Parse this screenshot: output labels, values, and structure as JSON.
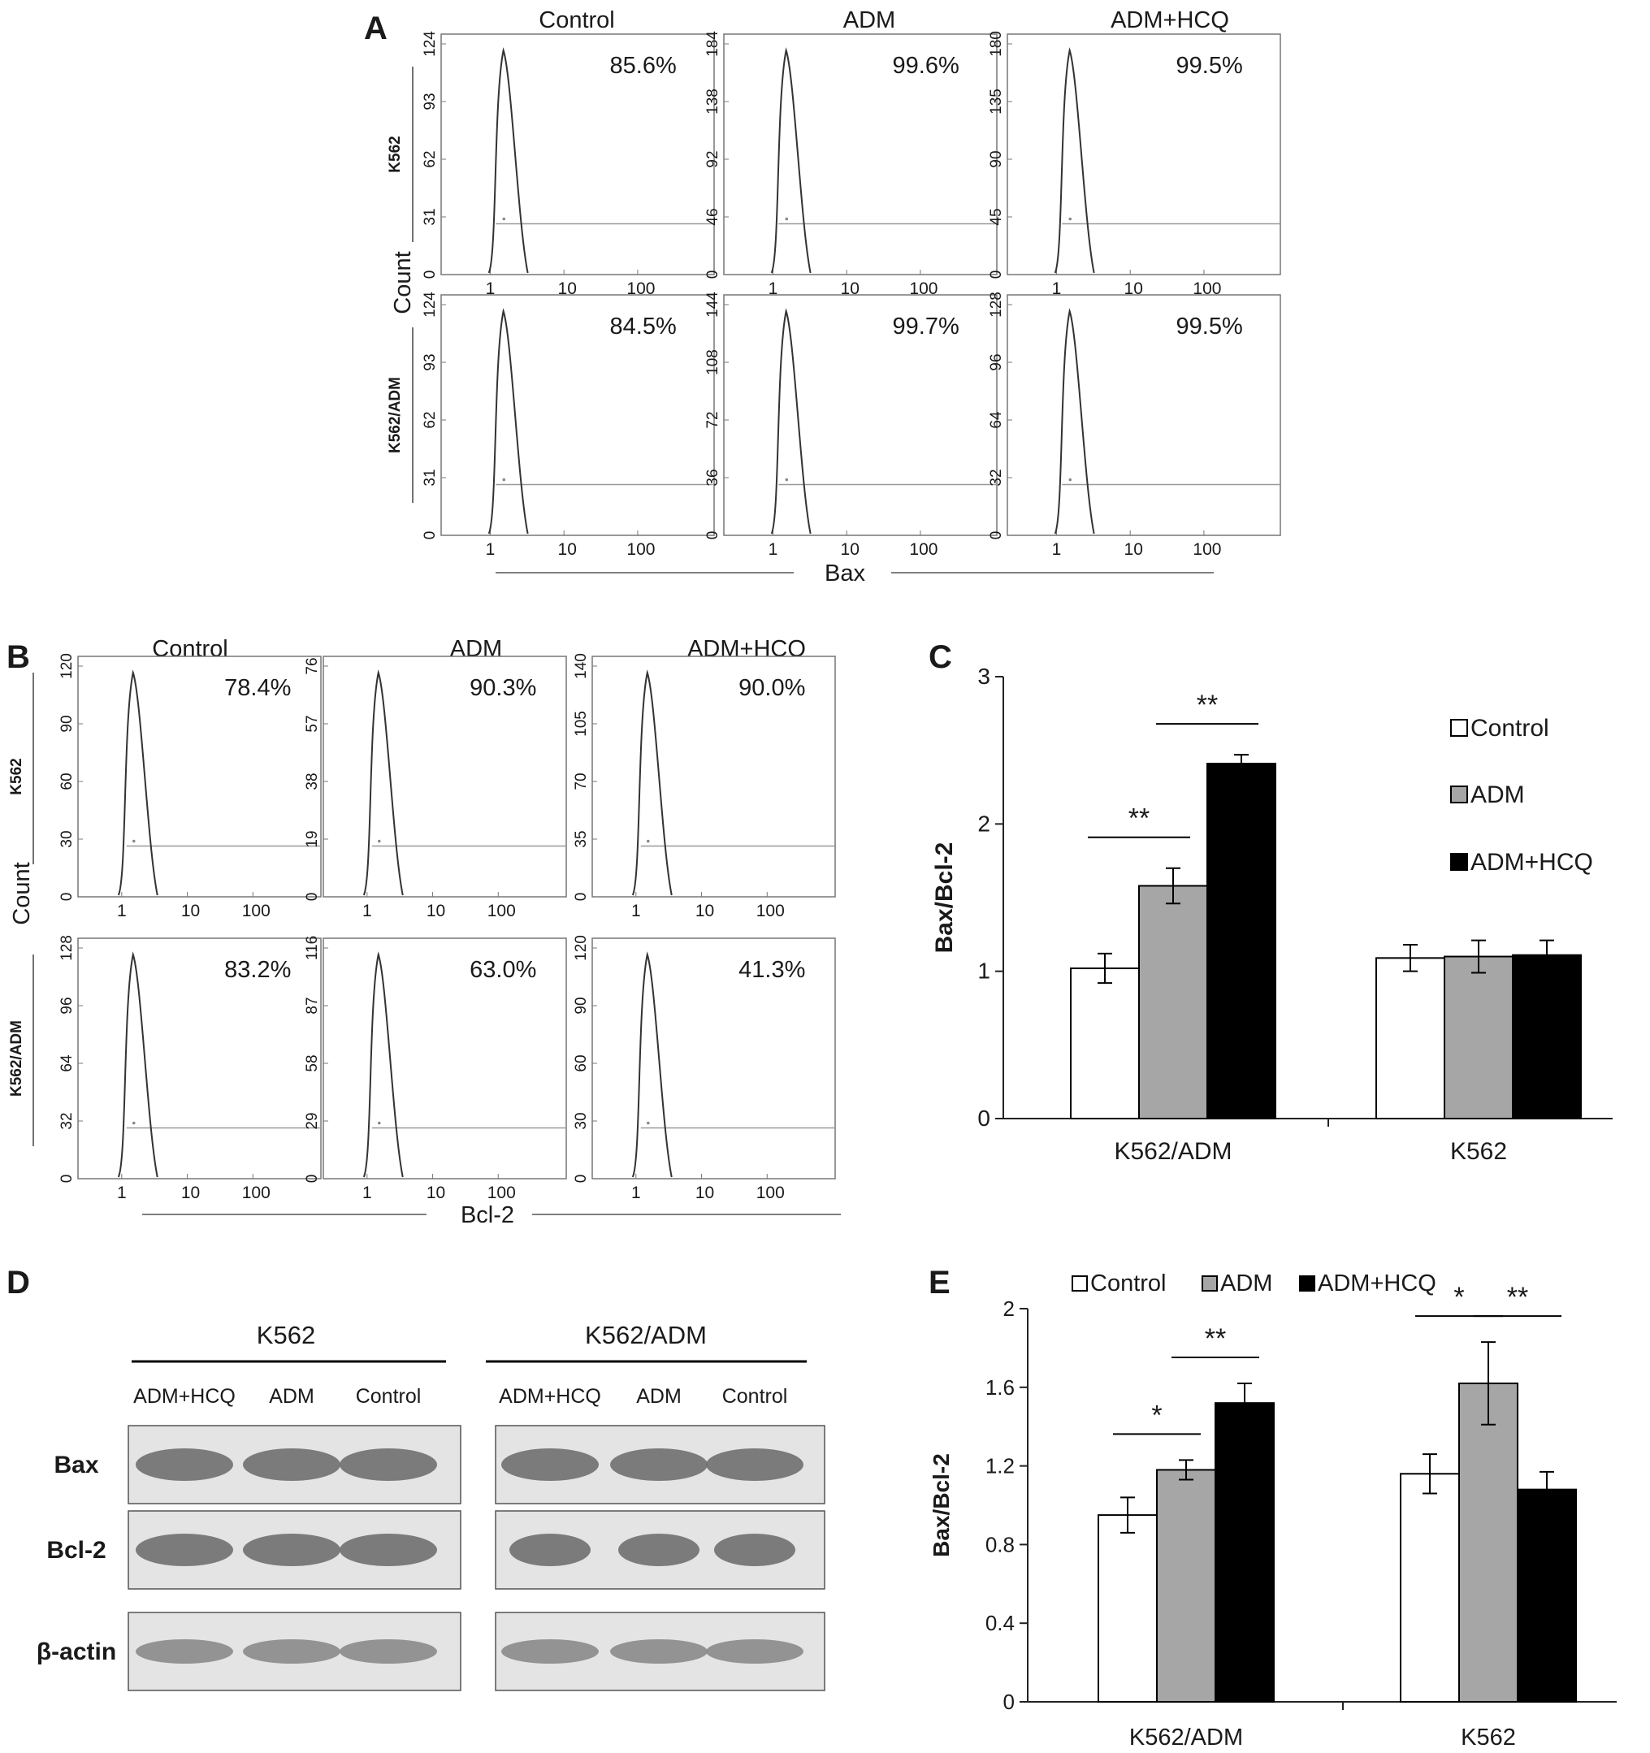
{
  "panels": {
    "A": {
      "letter": "A",
      "columns": [
        "Control",
        "ADM",
        "ADM+HCQ"
      ],
      "rows": [
        "K562",
        "K562/ADM"
      ],
      "y_axis_label": "Count",
      "x_axis_label": "Bax",
      "x_ticks": [
        "1",
        "10",
        "100"
      ],
      "histograms": [
        {
          "row": 0,
          "col": 0,
          "percent": "85.6%",
          "y_ticks": [
            "0",
            "31",
            "62",
            "93",
            "124"
          ]
        },
        {
          "row": 0,
          "col": 1,
          "percent": "99.6%",
          "y_ticks": [
            "0",
            "46",
            "92",
            "138",
            "184"
          ]
        },
        {
          "row": 0,
          "col": 2,
          "percent": "99.5%",
          "y_ticks": [
            "0",
            "45",
            "90",
            "135",
            "180"
          ]
        },
        {
          "row": 1,
          "col": 0,
          "percent": "84.5%",
          "y_ticks": [
            "0",
            "31",
            "62",
            "93",
            "124"
          ]
        },
        {
          "row": 1,
          "col": 1,
          "percent": "99.7%",
          "y_ticks": [
            "0",
            "36",
            "72",
            "108",
            "144"
          ]
        },
        {
          "row": 1,
          "col": 2,
          "percent": "99.5%",
          "y_ticks": [
            "0",
            "32",
            "64",
            "96",
            "128"
          ]
        }
      ]
    },
    "B": {
      "letter": "B",
      "columns": [
        "Control",
        "ADM",
        "ADM+HCQ"
      ],
      "rows": [
        "K562",
        "K562/ADM"
      ],
      "y_axis_label": "Count",
      "x_axis_label": "Bcl-2",
      "x_ticks": [
        "1",
        "10",
        "100"
      ],
      "histograms": [
        {
          "row": 0,
          "col": 0,
          "percent": "78.4%",
          "y_ticks": [
            "0",
            "30",
            "60",
            "90",
            "120"
          ]
        },
        {
          "row": 0,
          "col": 1,
          "percent": "90.3%",
          "y_ticks": [
            "0",
            "19",
            "38",
            "57",
            "76"
          ]
        },
        {
          "row": 0,
          "col": 2,
          "percent": "90.0%",
          "y_ticks": [
            "0",
            "35",
            "70",
            "105",
            "140"
          ]
        },
        {
          "row": 1,
          "col": 0,
          "percent": "83.2%",
          "y_ticks": [
            "0",
            "32",
            "64",
            "96",
            "128"
          ]
        },
        {
          "row": 1,
          "col": 1,
          "percent": "63.0%",
          "y_ticks": [
            "0",
            "29",
            "58",
            "87",
            "116"
          ]
        },
        {
          "row": 1,
          "col": 2,
          "percent": "41.3%",
          "y_ticks": [
            "0",
            "30",
            "60",
            "90",
            "120"
          ]
        }
      ]
    },
    "C": {
      "letter": "C"
    },
    "D": {
      "letter": "D",
      "groups": [
        "K562",
        "K562/ADM"
      ],
      "lanes": [
        "ADM+HCQ",
        "ADM",
        "Control"
      ],
      "proteins": [
        "Bax",
        "Bcl-2",
        "β-actin"
      ]
    },
    "E": {
      "letter": "E"
    }
  },
  "chart_data": [
    {
      "panel": "C",
      "type": "bar",
      "categories": [
        "K562/ADM",
        "K562"
      ],
      "ylabel": "Bax/Bcl-2",
      "ylim": [
        0,
        3
      ],
      "yticks": [
        "0",
        "1",
        "2",
        "3"
      ],
      "legend_position": "top-right",
      "series": [
        {
          "name": "Control",
          "values": [
            1.02,
            1.09
          ],
          "errors": [
            0.1,
            0.09
          ],
          "color": "#ffffff"
        },
        {
          "name": "ADM",
          "values": [
            1.58,
            1.1
          ],
          "errors": [
            0.12,
            0.11
          ],
          "color": "#a6a6a6"
        },
        {
          "name": "ADM+HCQ",
          "values": [
            2.41,
            1.11
          ],
          "errors": [
            0.06,
            0.1
          ],
          "color": "#000000"
        }
      ],
      "significance": [
        {
          "category": 0,
          "from": 0,
          "to": 1,
          "label": "**"
        },
        {
          "category": 0,
          "from": 1,
          "to": 2,
          "label": "**"
        }
      ]
    },
    {
      "panel": "E",
      "type": "bar",
      "categories": [
        "K562/ADM",
        "K562"
      ],
      "ylabel": "Bax/Bcl-2",
      "ylim": [
        0,
        2
      ],
      "yticks": [
        "0",
        "0.4",
        "0.8",
        "1.2",
        "1.6",
        "2"
      ],
      "legend_position": "top",
      "series": [
        {
          "name": "Control",
          "values": [
            0.95,
            1.16
          ],
          "errors": [
            0.09,
            0.1
          ],
          "color": "#ffffff"
        },
        {
          "name": "ADM",
          "values": [
            1.18,
            1.62
          ],
          "errors": [
            0.05,
            0.21
          ],
          "color": "#a6a6a6"
        },
        {
          "name": "ADM+HCQ",
          "values": [
            1.52,
            1.08
          ],
          "errors": [
            0.1,
            0.09
          ],
          "color": "#000000"
        }
      ],
      "significance": [
        {
          "category": 0,
          "from": 0,
          "to": 1,
          "label": "*"
        },
        {
          "category": 0,
          "from": 1,
          "to": 2,
          "label": "**"
        },
        {
          "category": 1,
          "from": 0,
          "to": 1,
          "label": "*"
        },
        {
          "category": 1,
          "from": 1,
          "to": 2,
          "label": "**"
        }
      ]
    }
  ]
}
